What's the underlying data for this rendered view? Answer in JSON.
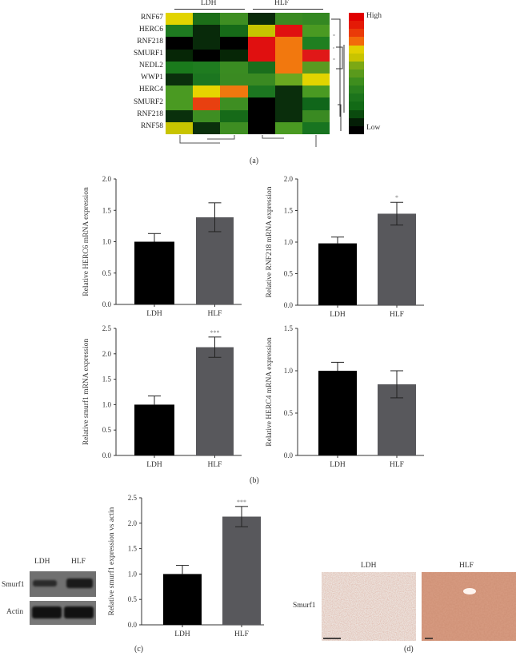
{
  "panels": {
    "a": {
      "label": "(a)",
      "group_labels": [
        "LDH",
        "HLF"
      ],
      "legend": {
        "high": "High",
        "low": "Low",
        "scale_colors": [
          "#e00000",
          "#e41a06",
          "#ea3a08",
          "#f26a0a",
          "#e2d000",
          "#c8c400",
          "#7ca814",
          "#5a9a1c",
          "#3e8e1e",
          "#2a801e",
          "#1c741c",
          "#126a16",
          "#0a4a0e",
          "#041e06",
          "#000000"
        ]
      },
      "rows": [
        "RNF67",
        "HERC6",
        "RNF218",
        "SMURF1",
        "NEDL2",
        "WWP1",
        "HERC4",
        "SMURF2",
        "RNF218",
        "RNF58"
      ]
    },
    "b": {
      "label": "(b)"
    },
    "c": {
      "label": "(c)",
      "blot_labels": {
        "lanes": [
          "LDH",
          "HLF"
        ],
        "rows": [
          "Smurf1",
          "Actin"
        ]
      }
    },
    "d": {
      "label": "(d)",
      "columns": [
        "LDH",
        "HLF"
      ],
      "row_label": "Smurf1"
    }
  },
  "chart_data": [
    {
      "type": "heatmap",
      "title": "",
      "x_groups": [
        "LDH",
        "LDH",
        "LDH",
        "HLF",
        "HLF",
        "HLF"
      ],
      "rows": [
        "RNF67",
        "HERC6",
        "RNF218",
        "SMURF1",
        "NEDL2",
        "WWP1",
        "HERC4",
        "SMURF2",
        "RNF218",
        "RNF58"
      ],
      "colors": [
        [
          "#e2d400",
          "#1c6e18",
          "#3e8e22",
          "#0a2a0a",
          "#3a8a22",
          "#348822"
        ],
        [
          "#1e7a20",
          "#082a0a",
          "#166a18",
          "#c6c400",
          "#e01010",
          "#4a9a22"
        ],
        [
          "#000000",
          "#082a0a",
          "#000000",
          "#e01010",
          "#f2780e",
          "#1f7f20"
        ],
        [
          "#062606",
          "#000000",
          "#062606",
          "#e01010",
          "#f2780e",
          "#e01818"
        ],
        [
          "#1a7a1c",
          "#1f7c20",
          "#3a8c22",
          "#1a6e1c",
          "#f2780e",
          "#5a9a20"
        ],
        [
          "#0a300c",
          "#1c7620",
          "#3a8a22",
          "#3a8a22",
          "#6aa820",
          "#e2d400"
        ],
        [
          "#4a9a22",
          "#e6d400",
          "#f0780e",
          "#1c7620",
          "#0a2e0c",
          "#4a9a22"
        ],
        [
          "#4a9a22",
          "#e84010",
          "#3e8e22",
          "#000000",
          "#0a2e0c",
          "#10661a"
        ],
        [
          "#0a300c",
          "#3e8e22",
          "#166a18",
          "#000000",
          "#0a2e0c",
          "#3a8a22"
        ],
        [
          "#c8c400",
          "#0a300c",
          "#3e8e22",
          "#000000",
          "#4a9a22",
          "#187420"
        ]
      ],
      "legend": {
        "high": "High",
        "low": "Low"
      }
    },
    {
      "type": "bar",
      "panel": "b",
      "categories": [
        "LDH",
        "HLF"
      ],
      "values": [
        1.0,
        1.39
      ],
      "errors": [
        0.13,
        0.23
      ],
      "significance": [
        "",
        ""
      ],
      "ylabel": "Relative HERC6 mRNA expression",
      "xlabel": "",
      "ylim": [
        0,
        2.0
      ],
      "yticks": [
        "0.0",
        "0.5",
        "1.0",
        "1.5",
        "2.0"
      ],
      "colors": [
        "#000000",
        "#58585c"
      ]
    },
    {
      "type": "bar",
      "panel": "b",
      "categories": [
        "LDH",
        "HLF"
      ],
      "values": [
        0.98,
        1.45
      ],
      "errors": [
        0.1,
        0.18
      ],
      "significance": [
        "",
        "*"
      ],
      "ylabel": "Relative RNF218 mRNA expression",
      "xlabel": "",
      "ylim": [
        0,
        2.0
      ],
      "yticks": [
        "0.0",
        "0.5",
        "1.0",
        "1.5",
        "2.0"
      ],
      "colors": [
        "#000000",
        "#58585c"
      ]
    },
    {
      "type": "bar",
      "panel": "b",
      "categories": [
        "LDH",
        "HLF"
      ],
      "values": [
        1.0,
        2.13
      ],
      "errors": [
        0.17,
        0.2
      ],
      "significance": [
        "",
        "***"
      ],
      "ylabel": "Relative smurf1 mRNA expression",
      "xlabel": "",
      "ylim": [
        0,
        2.5
      ],
      "yticks": [
        "0.0",
        "0.5",
        "1.0",
        "1.5",
        "2.0",
        "2.5"
      ],
      "colors": [
        "#000000",
        "#58585c"
      ]
    },
    {
      "type": "bar",
      "panel": "b",
      "categories": [
        "LDH",
        "HLF"
      ],
      "values": [
        1.0,
        0.84
      ],
      "errors": [
        0.1,
        0.16
      ],
      "significance": [
        "",
        ""
      ],
      "ylabel": "Relative HERC4 mRNA expression",
      "xlabel": "",
      "ylim": [
        0,
        1.5
      ],
      "yticks": [
        "0.0",
        "0.5",
        "1.0",
        "1.5"
      ],
      "colors": [
        "#000000",
        "#58585c"
      ]
    },
    {
      "type": "bar",
      "panel": "c",
      "categories": [
        "LDH",
        "HLF"
      ],
      "values": [
        1.0,
        2.13
      ],
      "errors": [
        0.17,
        0.2
      ],
      "significance": [
        "",
        "***"
      ],
      "ylabel": "Relative smurf1 expression vs actin",
      "xlabel": "",
      "ylim": [
        0,
        2.5
      ],
      "yticks": [
        "0.0",
        "0.5",
        "1.0",
        "1.5",
        "2.0",
        "2.5"
      ],
      "colors": [
        "#000000",
        "#58585c"
      ]
    }
  ]
}
